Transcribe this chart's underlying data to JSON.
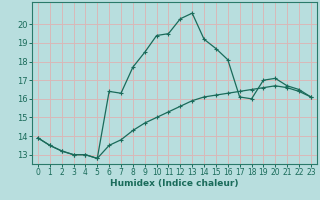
{
  "xlabel": "Humidex (Indice chaleur)",
  "background_color": "#b8dede",
  "grid_color": "#d8b8b8",
  "line_color": "#1a6b5a",
  "spine_color": "#2a7a6a",
  "xlim": [
    -0.5,
    23.5
  ],
  "ylim": [
    12.5,
    21.2
  ],
  "xticks": [
    0,
    1,
    2,
    3,
    4,
    5,
    6,
    7,
    8,
    9,
    10,
    11,
    12,
    13,
    14,
    15,
    16,
    17,
    18,
    19,
    20,
    21,
    22,
    23
  ],
  "yticks": [
    13,
    14,
    15,
    16,
    17,
    18,
    19,
    20
  ],
  "series1_x": [
    0,
    1,
    2,
    3,
    4,
    5,
    6,
    7,
    8,
    9,
    10,
    11,
    12,
    13,
    14,
    15,
    16,
    17,
    18,
    19,
    20,
    21,
    22,
    23
  ],
  "series1_y": [
    13.9,
    13.5,
    13.2,
    13.0,
    13.0,
    12.8,
    16.4,
    16.3,
    17.7,
    18.5,
    19.4,
    19.5,
    20.3,
    20.6,
    19.2,
    18.7,
    18.1,
    16.1,
    16.0,
    17.0,
    17.1,
    16.7,
    16.5,
    16.1
  ],
  "series2_x": [
    0,
    1,
    2,
    3,
    4,
    5,
    6,
    7,
    8,
    9,
    10,
    11,
    12,
    13,
    14,
    15,
    16,
    17,
    18,
    19,
    20,
    21,
    22,
    23
  ],
  "series2_y": [
    13.9,
    13.5,
    13.2,
    13.0,
    13.0,
    12.8,
    13.5,
    13.8,
    14.3,
    14.7,
    15.0,
    15.3,
    15.6,
    15.9,
    16.1,
    16.2,
    16.3,
    16.4,
    16.5,
    16.6,
    16.7,
    16.6,
    16.4,
    16.1
  ]
}
